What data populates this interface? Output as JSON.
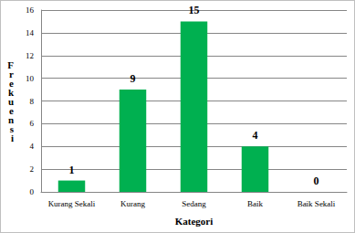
{
  "chart_data": {
    "type": "bar",
    "categories": [
      "Kurang Sekali",
      "Kurang",
      "Sedang",
      "Baik",
      "Baik Sekali"
    ],
    "values": [
      1,
      9,
      15,
      4,
      0
    ],
    "color": "#00b050",
    "x_label": "Kategori",
    "y_label": "Frekuensi",
    "ylim": [
      0,
      16
    ],
    "yticks": [
      0,
      2,
      4,
      6,
      8,
      10,
      12,
      14,
      16
    ],
    "grid": true,
    "data_labels": true
  }
}
